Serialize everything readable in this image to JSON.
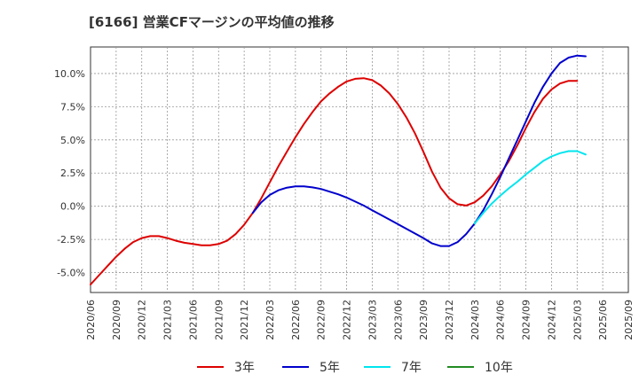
{
  "chart_data": {
    "type": "line",
    "title": "[6166]  営業CFマージンの平均値の推移",
    "xlabel": "",
    "ylabel": "",
    "ylim": [
      -6.5,
      12.0
    ],
    "y_ticks": [
      10.0,
      7.5,
      5.0,
      2.5,
      0.0,
      -2.5,
      -5.0
    ],
    "y_tick_labels": [
      "10.0%",
      "7.5%",
      "5.0%",
      "2.5%",
      "0.0%",
      "-2.5%",
      "-5.0%"
    ],
    "x_tick_labels": [
      "2020/06",
      "2020/09",
      "2020/12",
      "2021/03",
      "2021/06",
      "2021/09",
      "2021/12",
      "2022/03",
      "2022/06",
      "2022/09",
      "2022/12",
      "2023/03",
      "2023/06",
      "2023/09",
      "2023/12",
      "2024/03",
      "2024/06",
      "2024/09",
      "2024/12",
      "2025/03",
      "2025/06",
      "2025/09"
    ],
    "grid": true,
    "legend_position": "bottom",
    "series": [
      {
        "name": "3年",
        "color": "#dd0000",
        "points": [
          [
            "2020/06",
            -5.9
          ],
          [
            "2020/07",
            -5.2
          ],
          [
            "2020/08",
            -4.5
          ],
          [
            "2020/09",
            -3.8
          ],
          [
            "2020/10",
            -3.2
          ],
          [
            "2020/11",
            -2.7
          ],
          [
            "2020/12",
            -2.4
          ],
          [
            "2021/01",
            -2.25
          ],
          [
            "2021/02",
            -2.25
          ],
          [
            "2021/03",
            -2.4
          ],
          [
            "2021/04",
            -2.6
          ],
          [
            "2021/05",
            -2.75
          ],
          [
            "2021/06",
            -2.85
          ],
          [
            "2021/07",
            -2.95
          ],
          [
            "2021/08",
            -2.95
          ],
          [
            "2021/09",
            -2.85
          ],
          [
            "2021/10",
            -2.6
          ],
          [
            "2021/11",
            -2.1
          ],
          [
            "2021/12",
            -1.4
          ],
          [
            "2022/01",
            -0.5
          ],
          [
            "2022/02",
            0.6
          ],
          [
            "2022/03",
            1.8
          ],
          [
            "2022/04",
            3.0
          ],
          [
            "2022/05",
            4.1
          ],
          [
            "2022/06",
            5.2
          ],
          [
            "2022/07",
            6.2
          ],
          [
            "2022/08",
            7.1
          ],
          [
            "2022/09",
            7.9
          ],
          [
            "2022/10",
            8.5
          ],
          [
            "2022/11",
            9.0
          ],
          [
            "2022/12",
            9.4
          ],
          [
            "2023/01",
            9.6
          ],
          [
            "2023/02",
            9.65
          ],
          [
            "2023/03",
            9.5
          ],
          [
            "2023/04",
            9.1
          ],
          [
            "2023/05",
            8.5
          ],
          [
            "2023/06",
            7.7
          ],
          [
            "2023/07",
            6.7
          ],
          [
            "2023/08",
            5.5
          ],
          [
            "2023/09",
            4.1
          ],
          [
            "2023/10",
            2.6
          ],
          [
            "2023/11",
            1.4
          ],
          [
            "2023/12",
            0.6
          ],
          [
            "2024/01",
            0.15
          ],
          [
            "2024/02",
            0.05
          ],
          [
            "2024/03",
            0.3
          ],
          [
            "2024/04",
            0.8
          ],
          [
            "2024/05",
            1.5
          ],
          [
            "2024/06",
            2.4
          ],
          [
            "2024/07",
            3.4
          ],
          [
            "2024/08",
            4.6
          ],
          [
            "2024/09",
            5.9
          ],
          [
            "2024/10",
            7.1
          ],
          [
            "2024/11",
            8.1
          ],
          [
            "2024/12",
            8.8
          ],
          [
            "2025/01",
            9.25
          ],
          [
            "2025/02",
            9.45
          ],
          [
            "2025/03",
            9.45
          ]
        ]
      },
      {
        "name": "5年",
        "color": "#0000cc",
        "points": [
          [
            "2022/01",
            -0.5
          ],
          [
            "2022/02",
            0.3
          ],
          [
            "2022/03",
            0.85
          ],
          [
            "2022/04",
            1.2
          ],
          [
            "2022/05",
            1.4
          ],
          [
            "2022/06",
            1.5
          ],
          [
            "2022/07",
            1.5
          ],
          [
            "2022/08",
            1.42
          ],
          [
            "2022/09",
            1.3
          ],
          [
            "2022/10",
            1.1
          ],
          [
            "2022/11",
            0.9
          ],
          [
            "2022/12",
            0.65
          ],
          [
            "2023/01",
            0.35
          ],
          [
            "2023/02",
            0.05
          ],
          [
            "2023/03",
            -0.3
          ],
          [
            "2023/04",
            -0.65
          ],
          [
            "2023/05",
            -1.0
          ],
          [
            "2023/06",
            -1.35
          ],
          [
            "2023/07",
            -1.7
          ],
          [
            "2023/08",
            -2.05
          ],
          [
            "2023/09",
            -2.4
          ],
          [
            "2023/10",
            -2.8
          ],
          [
            "2023/11",
            -3.0
          ],
          [
            "2023/12",
            -3.0
          ],
          [
            "2024/01",
            -2.7
          ],
          [
            "2024/02",
            -2.1
          ],
          [
            "2024/03",
            -1.3
          ],
          [
            "2024/04",
            -0.3
          ],
          [
            "2024/05",
            0.9
          ],
          [
            "2024/06",
            2.2
          ],
          [
            "2024/07",
            3.6
          ],
          [
            "2024/08",
            5.0
          ],
          [
            "2024/09",
            6.4
          ],
          [
            "2024/10",
            7.8
          ],
          [
            "2024/11",
            9.0
          ],
          [
            "2024/12",
            10.0
          ],
          [
            "2025/01",
            10.8
          ],
          [
            "2025/02",
            11.2
          ],
          [
            "2025/03",
            11.35
          ],
          [
            "2025/04",
            11.3
          ]
        ]
      },
      {
        "name": "7年",
        "color": "#00e5ee",
        "points": [
          [
            "2024/03",
            -1.3
          ],
          [
            "2024/04",
            -0.5
          ],
          [
            "2024/05",
            0.2
          ],
          [
            "2024/06",
            0.8
          ],
          [
            "2024/07",
            1.35
          ],
          [
            "2024/08",
            1.85
          ],
          [
            "2024/09",
            2.4
          ],
          [
            "2024/10",
            2.9
          ],
          [
            "2024/11",
            3.4
          ],
          [
            "2024/12",
            3.75
          ],
          [
            "2025/01",
            4.0
          ],
          [
            "2025/02",
            4.15
          ],
          [
            "2025/03",
            4.15
          ],
          [
            "2025/04",
            3.9
          ]
        ]
      },
      {
        "name": "10年",
        "color": "#228b22",
        "points": []
      }
    ]
  }
}
